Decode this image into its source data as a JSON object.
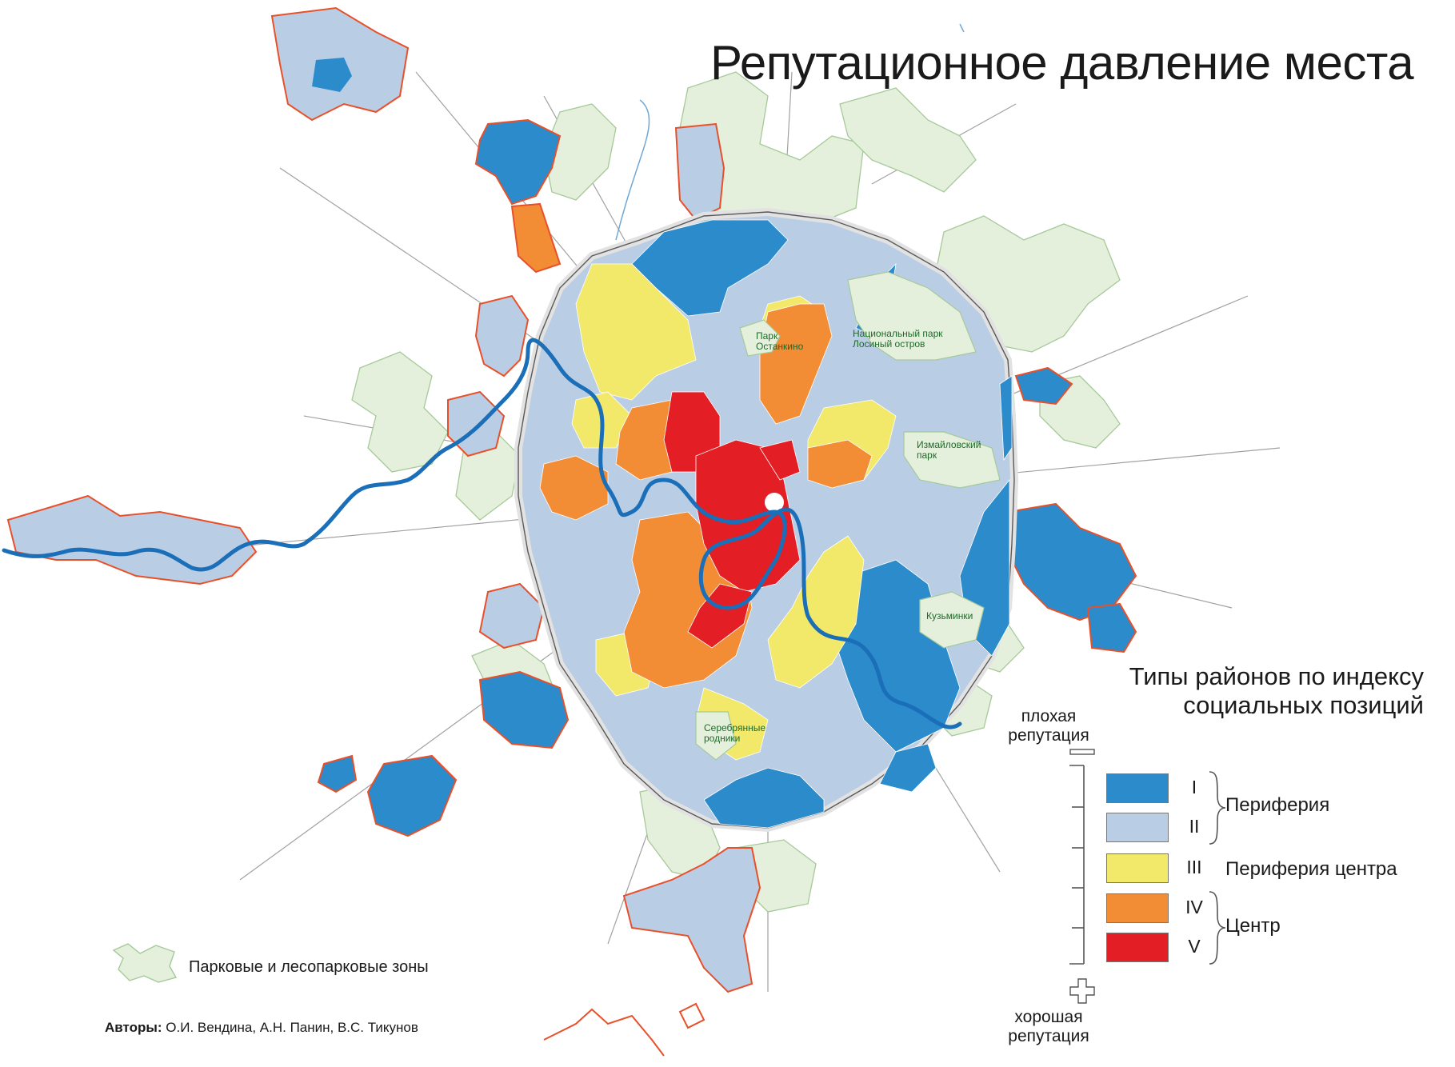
{
  "title": "Репутационное давление места",
  "park_labels": [
    {
      "id": "ostankino",
      "lines": [
        "Парк",
        "Останкино"
      ]
    },
    {
      "id": "losiny",
      "lines": [
        "Национальный парк",
        "Лосиный остров"
      ]
    },
    {
      "id": "izmailovsky",
      "lines": [
        "Измайловский",
        "парк"
      ]
    },
    {
      "id": "kuzminki",
      "lines": [
        "Кузьминки"
      ]
    },
    {
      "id": "serebryanye",
      "lines": [
        "Серебрянные",
        "родники"
      ]
    }
  ],
  "legend": {
    "title_line1": "Типы районов по индексу",
    "title_line2": "социальных позиций",
    "bad_reputation": [
      "плохая",
      "репутация"
    ],
    "good_reputation": [
      "хорошая",
      "репутация"
    ],
    "classes": [
      {
        "roman": "I",
        "color": "#2b8bcb"
      },
      {
        "roman": "II",
        "color": "#b9cde5"
      },
      {
        "roman": "III",
        "color": "#f2e96b"
      },
      {
        "roman": "IV",
        "color": "#f28c35"
      },
      {
        "roman": "V",
        "color": "#e31e24"
      }
    ],
    "groups": {
      "periphery": "Периферия",
      "center_periphery": "Периферия центра",
      "center": "Центр"
    },
    "parks": "Парковые и лесопарковые зоны"
  },
  "authors": {
    "label": "Авторы:",
    "names": "О.И. Вендина, А.Н. Панин, В.С. Тикунов"
  },
  "colors": {
    "park_fill": "#e4f0dc",
    "park_stroke": "#a6c99a",
    "boundary": "#e8502a",
    "river": "#1a6fb8",
    "roads": "#8a8a8a",
    "mkad": "#e2e2e2"
  }
}
